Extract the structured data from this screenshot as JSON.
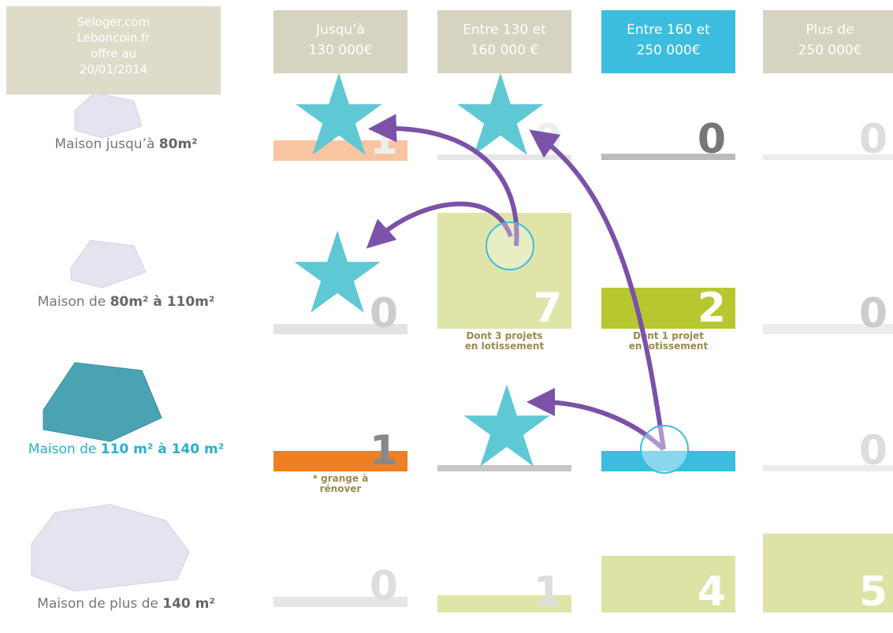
{
  "header": {
    "source": [
      "Seloger.com",
      "Leboncoin.fr",
      "offre au",
      "20/01/2014"
    ]
  },
  "columns": [
    [
      "Jusqu’à",
      "130 000€"
    ],
    [
      "Entre 130 et",
      "160 000 €"
    ],
    [
      "Entre 160 et",
      "250 000€"
    ],
    [
      "Plus de",
      "250 000€"
    ]
  ],
  "rows": [
    {
      "label": [
        "Maison jusqu’à ",
        "80m²"
      ],
      "cells": [
        "1",
        "0",
        "0",
        "0"
      ]
    },
    {
      "label": [
        "Maison de ",
        "80m² à 110m²"
      ],
      "cells": [
        "0",
        "7",
        "2",
        "0"
      ],
      "notes": [
        null,
        [
          "Dont 3 projets",
          "en lotissement"
        ],
        [
          "Dont 1 projet",
          "en lotissement"
        ],
        null
      ]
    },
    {
      "label": [
        "Maison de ",
        "110 m² à 140 m²"
      ],
      "cells": [
        "1",
        null,
        null,
        "0"
      ],
      "notes": [
        [
          "* grange à",
          "rénover"
        ],
        null,
        null,
        null
      ]
    },
    {
      "label": [
        "Maison de plus de ",
        "140 m²"
      ],
      "cells": [
        "0",
        "1",
        "4",
        "5"
      ]
    }
  ]
}
